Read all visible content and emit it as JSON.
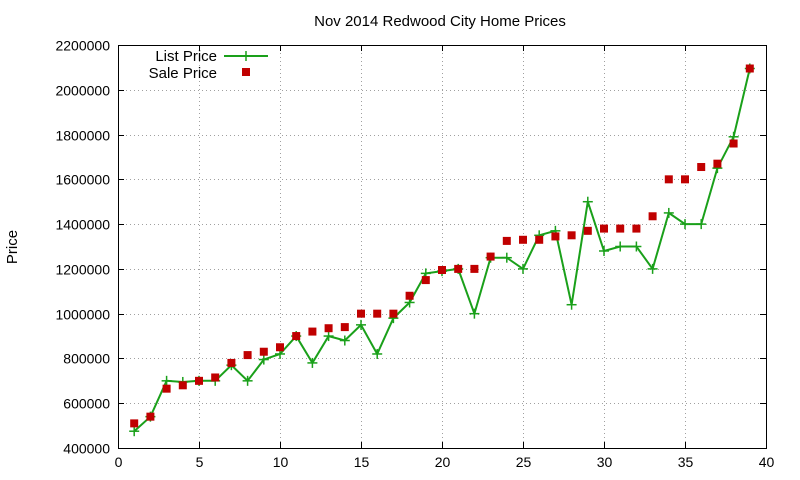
{
  "chart_data": {
    "type": "line",
    "title": "Nov 2014 Redwood City Home Prices",
    "xlabel": "",
    "ylabel": "Price",
    "xlim": [
      0,
      40
    ],
    "ylim": [
      400000,
      2200000
    ],
    "x_ticks": [
      0,
      5,
      10,
      15,
      20,
      25,
      30,
      35,
      40
    ],
    "y_ticks": [
      400000,
      600000,
      800000,
      1000000,
      1200000,
      1400000,
      1600000,
      1800000,
      2000000,
      2200000
    ],
    "x_tick_labels": [
      "0",
      "5",
      "10",
      "15",
      "20",
      "25",
      "30",
      "35",
      "40"
    ],
    "y_tick_labels": [
      "400000",
      "600000",
      "800000",
      "1000000",
      "1200000",
      "1400000",
      "1600000",
      "1800000",
      "2000000",
      "2200000"
    ],
    "grid": true,
    "legend_position": "top-left",
    "x": [
      1,
      2,
      3,
      4,
      5,
      6,
      7,
      8,
      9,
      10,
      11,
      12,
      13,
      14,
      15,
      16,
      17,
      18,
      19,
      20,
      21,
      22,
      23,
      24,
      25,
      26,
      27,
      28,
      29,
      30,
      31,
      32,
      33,
      34,
      35,
      36,
      37,
      38,
      39
    ],
    "series": [
      {
        "name": "List Price",
        "style": "linespoints",
        "marker": "plus",
        "color": "#1aa01a",
        "values": [
          475000,
          540000,
          700000,
          695000,
          700000,
          700000,
          770000,
          700000,
          795000,
          820000,
          900000,
          780000,
          900000,
          880000,
          950000,
          820000,
          980000,
          1050000,
          1180000,
          1190000,
          1200000,
          1000000,
          1250000,
          1250000,
          1200000,
          1350000,
          1370000,
          1040000,
          1500000,
          1280000,
          1300000,
          1300000,
          1200000,
          1450000,
          1400000,
          1400000,
          1650000,
          1790000,
          2095000
        ]
      },
      {
        "name": "Sale Price",
        "style": "points",
        "marker": "square",
        "color": "#c00000",
        "values": [
          510000,
          540000,
          665000,
          680000,
          700000,
          715000,
          780000,
          815000,
          830000,
          850000,
          900000,
          920000,
          935000,
          940000,
          1000000,
          1000000,
          1000000,
          1080000,
          1150000,
          1195000,
          1200000,
          1200000,
          1255000,
          1325000,
          1330000,
          1330000,
          1345000,
          1350000,
          1370000,
          1380000,
          1380000,
          1380000,
          1435000,
          1600000,
          1600000,
          1655000,
          1670000,
          1760000,
          2095000
        ]
      }
    ]
  }
}
